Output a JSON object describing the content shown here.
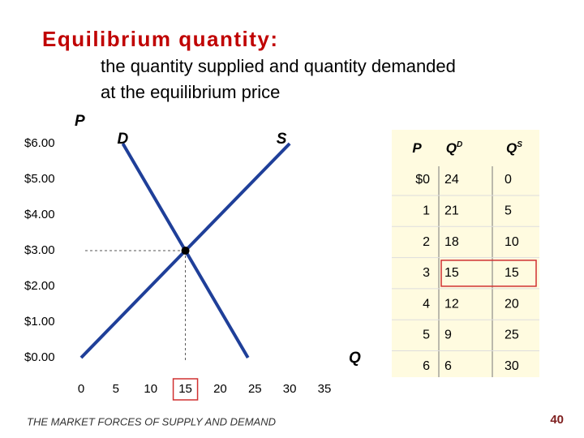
{
  "title": "Equilibrium quantity:",
  "subtitle_lines": [
    "the quantity supplied and quantity demanded",
    "at the equilibrium price"
  ],
  "footer": "THE MARKET FORCES OF SUPPLY AND DEMAND",
  "page_number": "40",
  "chart_data": {
    "type": "line",
    "y_label": "P",
    "x_label": "Q",
    "xlim": [
      0,
      35
    ],
    "xticks": [
      0,
      5,
      10,
      15,
      20,
      25,
      30,
      35
    ],
    "ylim": [
      0,
      6
    ],
    "yticks": [
      {
        "value": 0,
        "label": "$0.00"
      },
      {
        "value": 1,
        "label": "$1.00"
      },
      {
        "value": 2,
        "label": "$2.00"
      },
      {
        "value": 3,
        "label": "$3.00"
      },
      {
        "value": 4,
        "label": "$4.00"
      },
      {
        "value": 5,
        "label": "$5.00"
      },
      {
        "value": 6,
        "label": "$6.00"
      }
    ],
    "series": [
      {
        "name": "D",
        "color": "#1f3f99",
        "x": [
          24,
          21,
          18,
          15,
          12,
          9,
          6
        ],
        "values": [
          0,
          1,
          2,
          3,
          4,
          5,
          6
        ]
      },
      {
        "name": "S",
        "color": "#1f3f99",
        "x": [
          0,
          5,
          10,
          15,
          20,
          25,
          30
        ],
        "values": [
          0,
          1,
          2,
          3,
          4,
          5,
          6
        ]
      }
    ],
    "equilibrium": {
      "x": 15,
      "y": 3
    }
  },
  "table": {
    "columns": [
      {
        "label": "P"
      },
      {
        "label": "Q",
        "sup": "D"
      },
      {
        "label": "Q",
        "sup": "S"
      }
    ],
    "rows": [
      [
        "$0",
        "24",
        "0"
      ],
      [
        "1",
        "21",
        "5"
      ],
      [
        "2",
        "18",
        "10"
      ],
      [
        "3",
        "15",
        "15"
      ],
      [
        "4",
        "12",
        "20"
      ],
      [
        "5",
        "9",
        "25"
      ],
      [
        "6",
        "6",
        "30"
      ]
    ],
    "highlight_row": 3
  }
}
